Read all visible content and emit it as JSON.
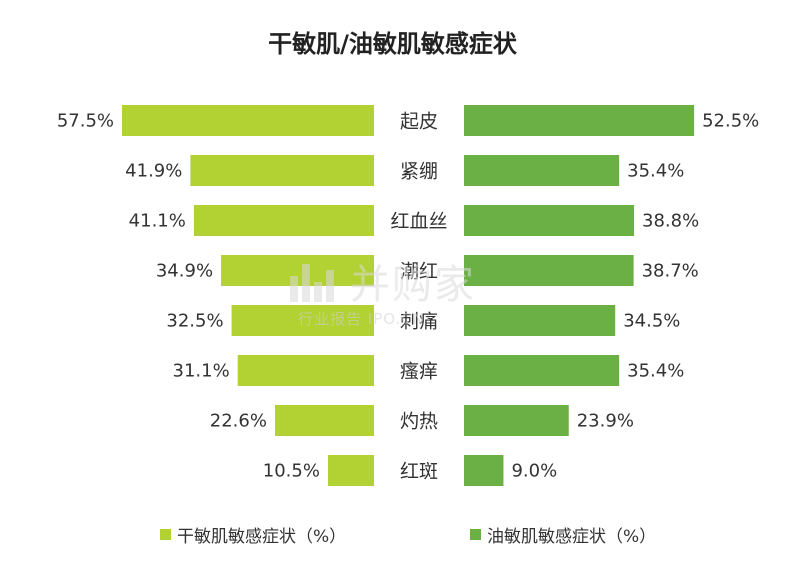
{
  "colors": {
    "dry": "#b2d234",
    "oily": "#6ab045",
    "text": "#333333"
  },
  "chart_data": {
    "type": "bar",
    "title": "干敏肌/油敏肌敏感症状",
    "categories": [
      "起皮",
      "紧绷",
      "红血丝",
      "潮红",
      "刺痛",
      "瘙痒",
      "灼热",
      "红斑"
    ],
    "series": [
      {
        "name": "干敏肌敏感症状（%）",
        "values": [
          57.5,
          41.9,
          41.1,
          34.9,
          32.5,
          31.1,
          22.6,
          10.5
        ],
        "labels": [
          "57.5%",
          "41.9%",
          "41.1%",
          "34.9%",
          "32.5%",
          "31.1%",
          "22.6%",
          "10.5%"
        ]
      },
      {
        "name": "油敏肌敏感症状（%）",
        "values": [
          52.5,
          35.4,
          38.8,
          38.7,
          34.5,
          35.4,
          23.9,
          9.0
        ],
        "labels": [
          "52.5%",
          "35.4%",
          "38.8%",
          "38.7%",
          "34.5%",
          "35.4%",
          "23.9%",
          "9.0%"
        ]
      }
    ],
    "xlim": [
      0,
      57.5
    ],
    "grid": false,
    "legend_position": "bottom"
  },
  "watermark": {
    "brand": "并购家",
    "sub": "行业报告 IPO.CN"
  }
}
